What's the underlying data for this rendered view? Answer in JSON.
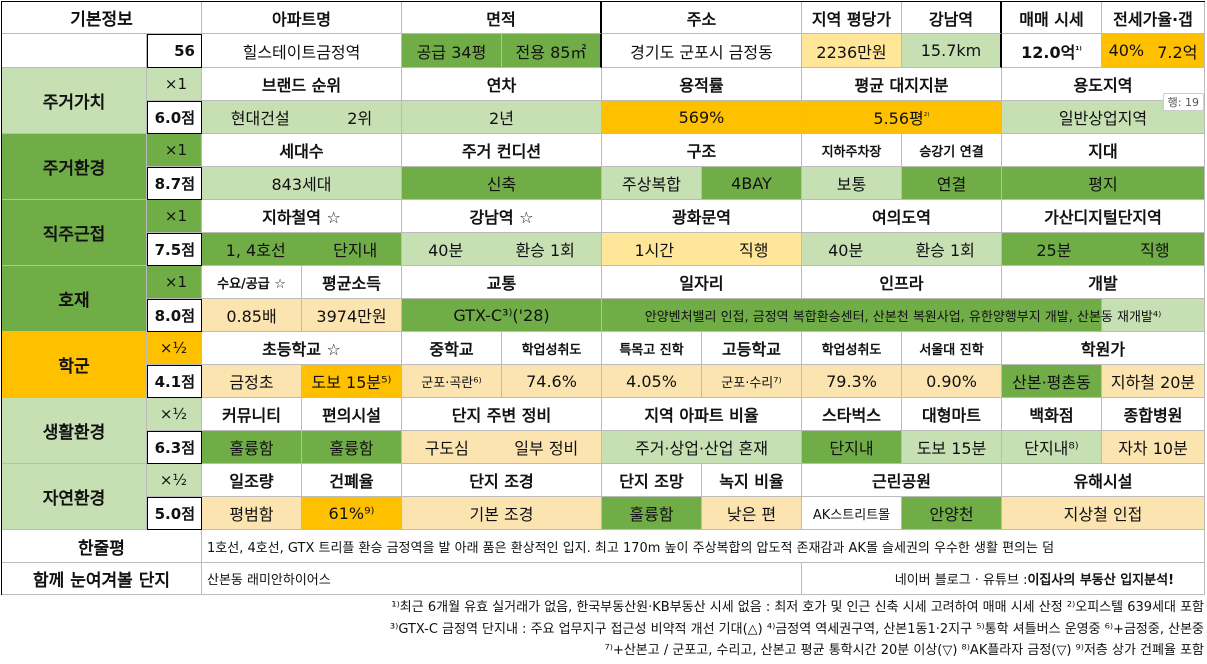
{
  "colors": {
    "green": "#70ad47",
    "lightgreen": "#c6e0b4",
    "orange": "#ffc000",
    "yellow": "#ffe699",
    "peach": "#fce4b0",
    "gray": "#d9d9d9"
  },
  "basic": {
    "label": "기본정보",
    "number": "56",
    "headers": [
      "아파트명",
      "면적",
      "주소",
      "지역 평당가",
      "강남역",
      "매매 시세",
      "전세가율·갭"
    ],
    "apt_name": "힐스테이트금정역",
    "area_supply": "공급 34평",
    "area_exclusive": "전용 85㎡",
    "address": "경기도 군포시 금정동",
    "price_per_pyeong": "2236만원",
    "gangnam_dist": "15.7km",
    "sale_price": "12.0억",
    "sale_sup": "¹⁾",
    "jeonse_rate": "40%",
    "gap": "7.2억"
  },
  "sections": {
    "s1": {
      "label": "주거가치",
      "mult": "×1",
      "score": "6.0점",
      "headers": [
        "브랜드 순위",
        "연차",
        "용적률",
        "평균 대지지분",
        "용도지역"
      ],
      "brand": "현대건설",
      "brand_rank": "2위",
      "age": "2년",
      "far": "569%",
      "land": "5.56평",
      "land_sup": "²⁾",
      "zone": "일반상업지역"
    },
    "s2": {
      "label": "주거환경",
      "mult": "×1",
      "score": "8.7점",
      "headers": [
        "세대수",
        "주거 컨디션",
        "구조",
        "지하주차장",
        "승강기 연결",
        "지대"
      ],
      "households": "843세대",
      "condition": "신축",
      "structure": "주상복합",
      "bay": "4BAY",
      "parking": "보통",
      "elevator": "연결",
      "terrain": "평지"
    },
    "s3": {
      "label": "직주근접",
      "mult": "×1",
      "score": "7.5점",
      "headers": [
        "지하철역 ☆",
        "강남역 ☆",
        "광화문역",
        "여의도역",
        "가산디지털단지역"
      ],
      "subway_lines": "1, 4호선",
      "subway_loc": "단지내",
      "gangnam_time": "40분",
      "gangnam_tr": "환승 1회",
      "gwanghwamun_time": "1시간",
      "gwanghwamun_tr": "직행",
      "yeouido_time": "40분",
      "yeouido_tr": "환승 1회",
      "gasan_time": "25분",
      "gasan_tr": "직행"
    },
    "s4": {
      "label": "호재",
      "mult": "×1",
      "score": "8.0점",
      "headers": [
        "수요/공급 ☆",
        "평균소득",
        "교통",
        "일자리",
        "인프라",
        "개발"
      ],
      "supply": "0.85배",
      "income": "3974만원",
      "traffic": "GTX-C³⁾('28)",
      "jobs_infra_dev": "안양벤처밸리 인접, 금정역 복합환승센터, 산본천 복원사업, 유한양행부지 개발, 산본동 재개발⁴⁾"
    },
    "s5": {
      "label": "학군",
      "mult": "×½",
      "score": "4.1점",
      "headers": [
        "초등학교 ☆",
        "중학교",
        "학업성취도",
        "특목고 진학",
        "고등학교",
        "학업성취도",
        "서울대 진학",
        "학원가"
      ],
      "elem": "금정초",
      "elem_dist": "도보 15분⁵⁾",
      "middle": "군포·곡란⁶⁾",
      "middle_ach": "74.6%",
      "special": "4.05%",
      "high": "군포·수리⁷⁾",
      "high_ach": "79.3%",
      "snu": "0.90%",
      "academy": "산본·평촌동",
      "academy_dist": "지하철 20분"
    },
    "s6": {
      "label": "생활환경",
      "mult": "×½",
      "score": "6.3점",
      "headers": [
        "커뮤니티",
        "편의시설",
        "단지 주변 정비",
        "지역 아파트 비율",
        "스타벅스",
        "대형마트",
        "백화점",
        "종합병원"
      ],
      "community": "훌륭함",
      "convenience": "훌륭함",
      "around": "구도심",
      "around2": "일부 정비",
      "ratio": "주거·상업·산업 혼재",
      "starbucks": "단지내",
      "mart": "도보 15분",
      "dept": "단지내⁸⁾",
      "hospital": "자차 10분"
    },
    "s7": {
      "label": "자연환경",
      "mult": "×½",
      "score": "5.0점",
      "headers": [
        "일조량",
        "건폐율",
        "단지 조경",
        "단지 조망",
        "녹지 비율",
        "근린공원",
        "유해시설"
      ],
      "sun": "평범함",
      "bcr": "61%⁹⁾",
      "landscape": "기본 조경",
      "view": "훌륭함",
      "green": "낮은 편",
      "park1": "AK스트리트몰",
      "park2": "안양천",
      "hazard": "지상철 인접"
    }
  },
  "summary": {
    "label": "한줄평",
    "text": "1호선, 4호선, GTX 트리플 환승 금정역을 발 아래 품은 환상적인 입지. 최고 170m 높이 주상복합의 압도적 존재감과 AK몰 슬세권의 우수한 생활 편의는 덤"
  },
  "together": {
    "label": "함께 눈여겨볼 단지",
    "text": "산본동 래미안하이어스",
    "credit": "네이버 블로그 · 유튜브 : ",
    "credit_bold": "이집사의 부동산 입지분석!"
  },
  "badge": "행: 19",
  "notes": [
    "¹⁾최근 6개월 유효 실거래가 없음, 한국부동산원·KB부동산 시세 없음 : 최저 호가 및 인근 신축 시세 고려하여 매매 시세 산정 ²⁾오피스텔 639세대 포함",
    "³⁾GTX-C 금정역 단지내 : 주요 업무지구 접근성 비약적 개선 기대(△) ⁴⁾금정역 역세권구역, 산본1동1·2지구 ⁵⁾통학 셔틀버스 운영중 ⁶⁾+금정중, 산본중",
    "⁷⁾+산본고 / 군포고, 수리고, 산본고 평균 통학시간 20분 이상(▽) ⁸⁾AK플라자 금정(▽) ⁹⁾저층 상가 건폐율 포함"
  ]
}
